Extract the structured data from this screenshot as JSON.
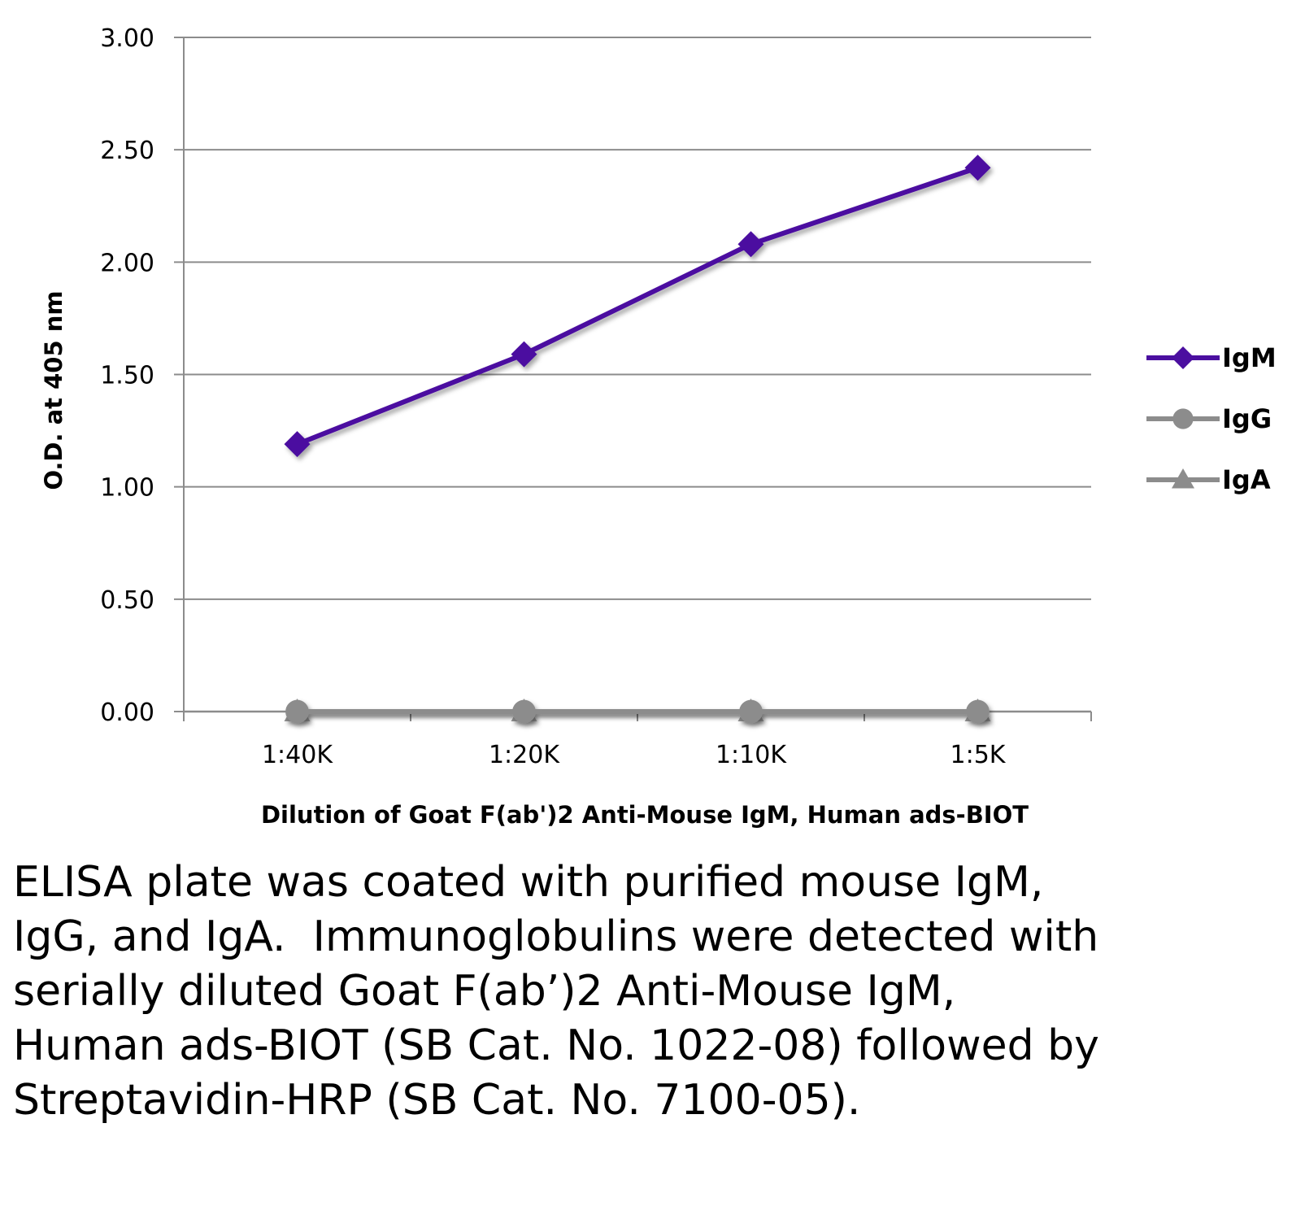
{
  "chart_data": {
    "type": "line",
    "title": "",
    "categories": [
      "1:40K",
      "1:20K",
      "1:10K",
      "1:5K"
    ],
    "series": [
      {
        "name": "IgM",
        "values": [
          1.19,
          1.59,
          2.08,
          2.42
        ],
        "color": "#4b0fa0",
        "marker": "diamond"
      },
      {
        "name": "IgG",
        "values": [
          0.0,
          0.0,
          0.0,
          0.0
        ],
        "color": "#8c8c8c",
        "marker": "circle"
      },
      {
        "name": "IgA",
        "values": [
          0.0,
          0.0,
          0.0,
          0.0
        ],
        "color": "#8c8c8c",
        "marker": "triangle"
      }
    ],
    "y_ticks": [
      "0.00",
      "0.50",
      "1.00",
      "1.50",
      "2.00",
      "2.50",
      "3.00"
    ],
    "ylim": [
      0,
      3
    ],
    "xlabel": "Dilution of Goat F(ab')2 Anti-Mouse IgM, Human ads-BIOT",
    "ylabel": "O.D. at 405 nm",
    "grid": true,
    "legend_position": "right"
  },
  "caption": "ELISA plate was coated with purified mouse IgM, IgG, and IgA.  Immunoglobulins were detected with serially diluted Goat F(ab’)2 Anti-Mouse IgM, Human ads-BIOT (SB Cat. No. 1022-08) followed by Streptavidin-HRP (SB Cat. No. 7100-05)."
}
